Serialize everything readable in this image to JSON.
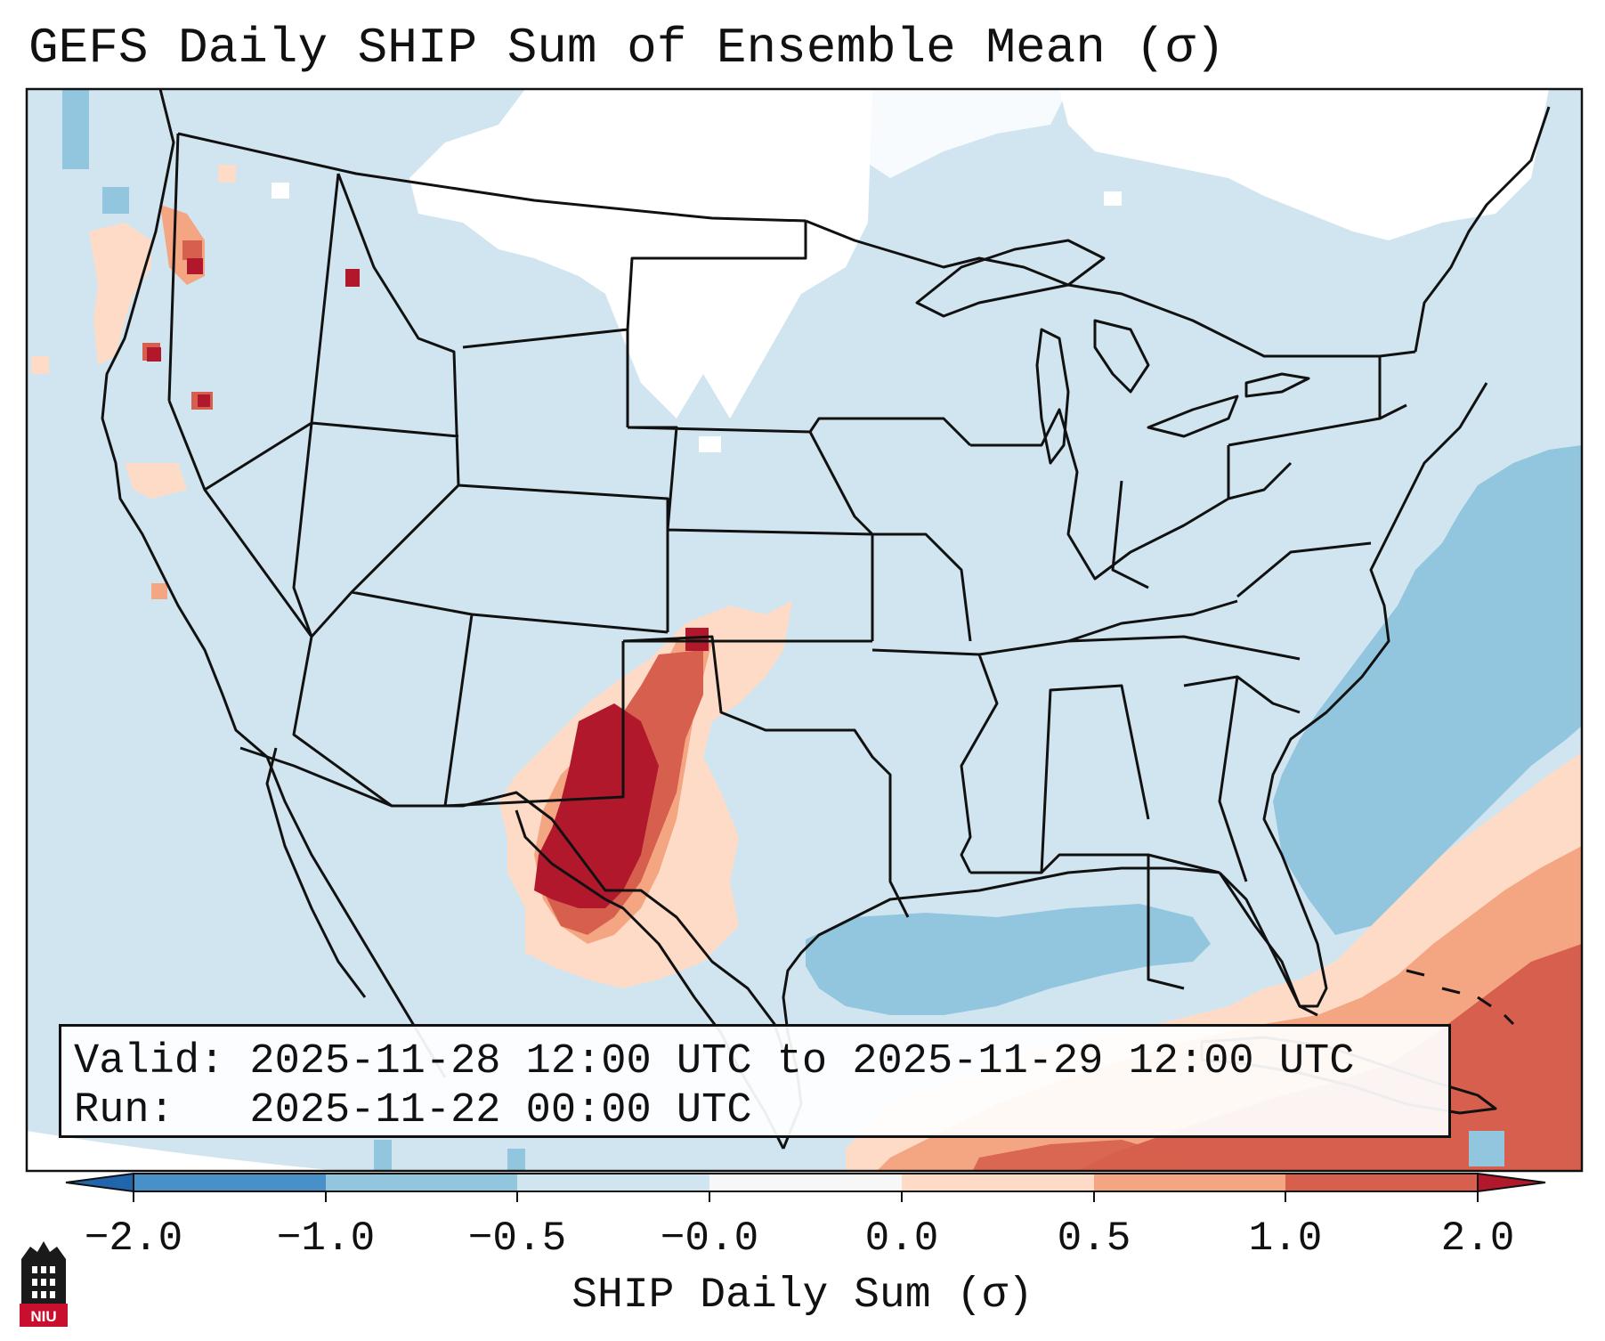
{
  "title": "GEFS Daily SHIP Sum of Ensemble Mean (σ)",
  "valid_line": "Valid: 2025-11-28 12:00 UTC to 2025-11-29 12:00 UTC",
  "run_line": "Run:   2025-11-22 00:00 UTC",
  "colorbar": {
    "label": "SHIP Daily Sum (σ)",
    "ticks": [
      "−2.0",
      "−1.0",
      "−0.5",
      "−0.0",
      "0.0",
      "0.5",
      "1.0",
      "2.0"
    ],
    "bins": [
      {
        "range": "-2.0 to -1.0",
        "color": "#4a90c8"
      },
      {
        "range": "-1.0 to -0.5",
        "color": "#92c5de"
      },
      {
        "range": "-0.5 to -0.0",
        "color": "#d1e5f0"
      },
      {
        "range": "-0.0 to 0.0",
        "color": "#f7f7f7"
      },
      {
        "range": "0.0 to 0.5",
        "color": "#fddbc7"
      },
      {
        "range": "0.5 to 1.0",
        "color": "#f4a582"
      },
      {
        "range": "1.0 to 2.0",
        "color": "#d6604d"
      }
    ],
    "extend_low_color": "#2166ac",
    "extend_high_color": "#b2182b"
  },
  "map": {
    "region": "Continental United States",
    "background_color": "#d1e5f0",
    "features": [
      {
        "name": "positive anomaly over West Texas and eastern New Mexico",
        "value_range": "1.0 to 2.0+"
      },
      {
        "name": "positive anomaly over the Caribbean and eastern Gulf",
        "value_range": "0.5 to 2.0"
      },
      {
        "name": "negative anomaly over the western Atlantic",
        "value_range": "-1.0 to -0.5"
      },
      {
        "name": "negative anomaly over the Gulf of Mexico",
        "value_range": "-1.0 to -0.5"
      },
      {
        "name": "near-zero values over the northern Plains and Canada",
        "value_range": "-0.0 to 0.0"
      }
    ]
  },
  "logo_text": "NIU"
}
